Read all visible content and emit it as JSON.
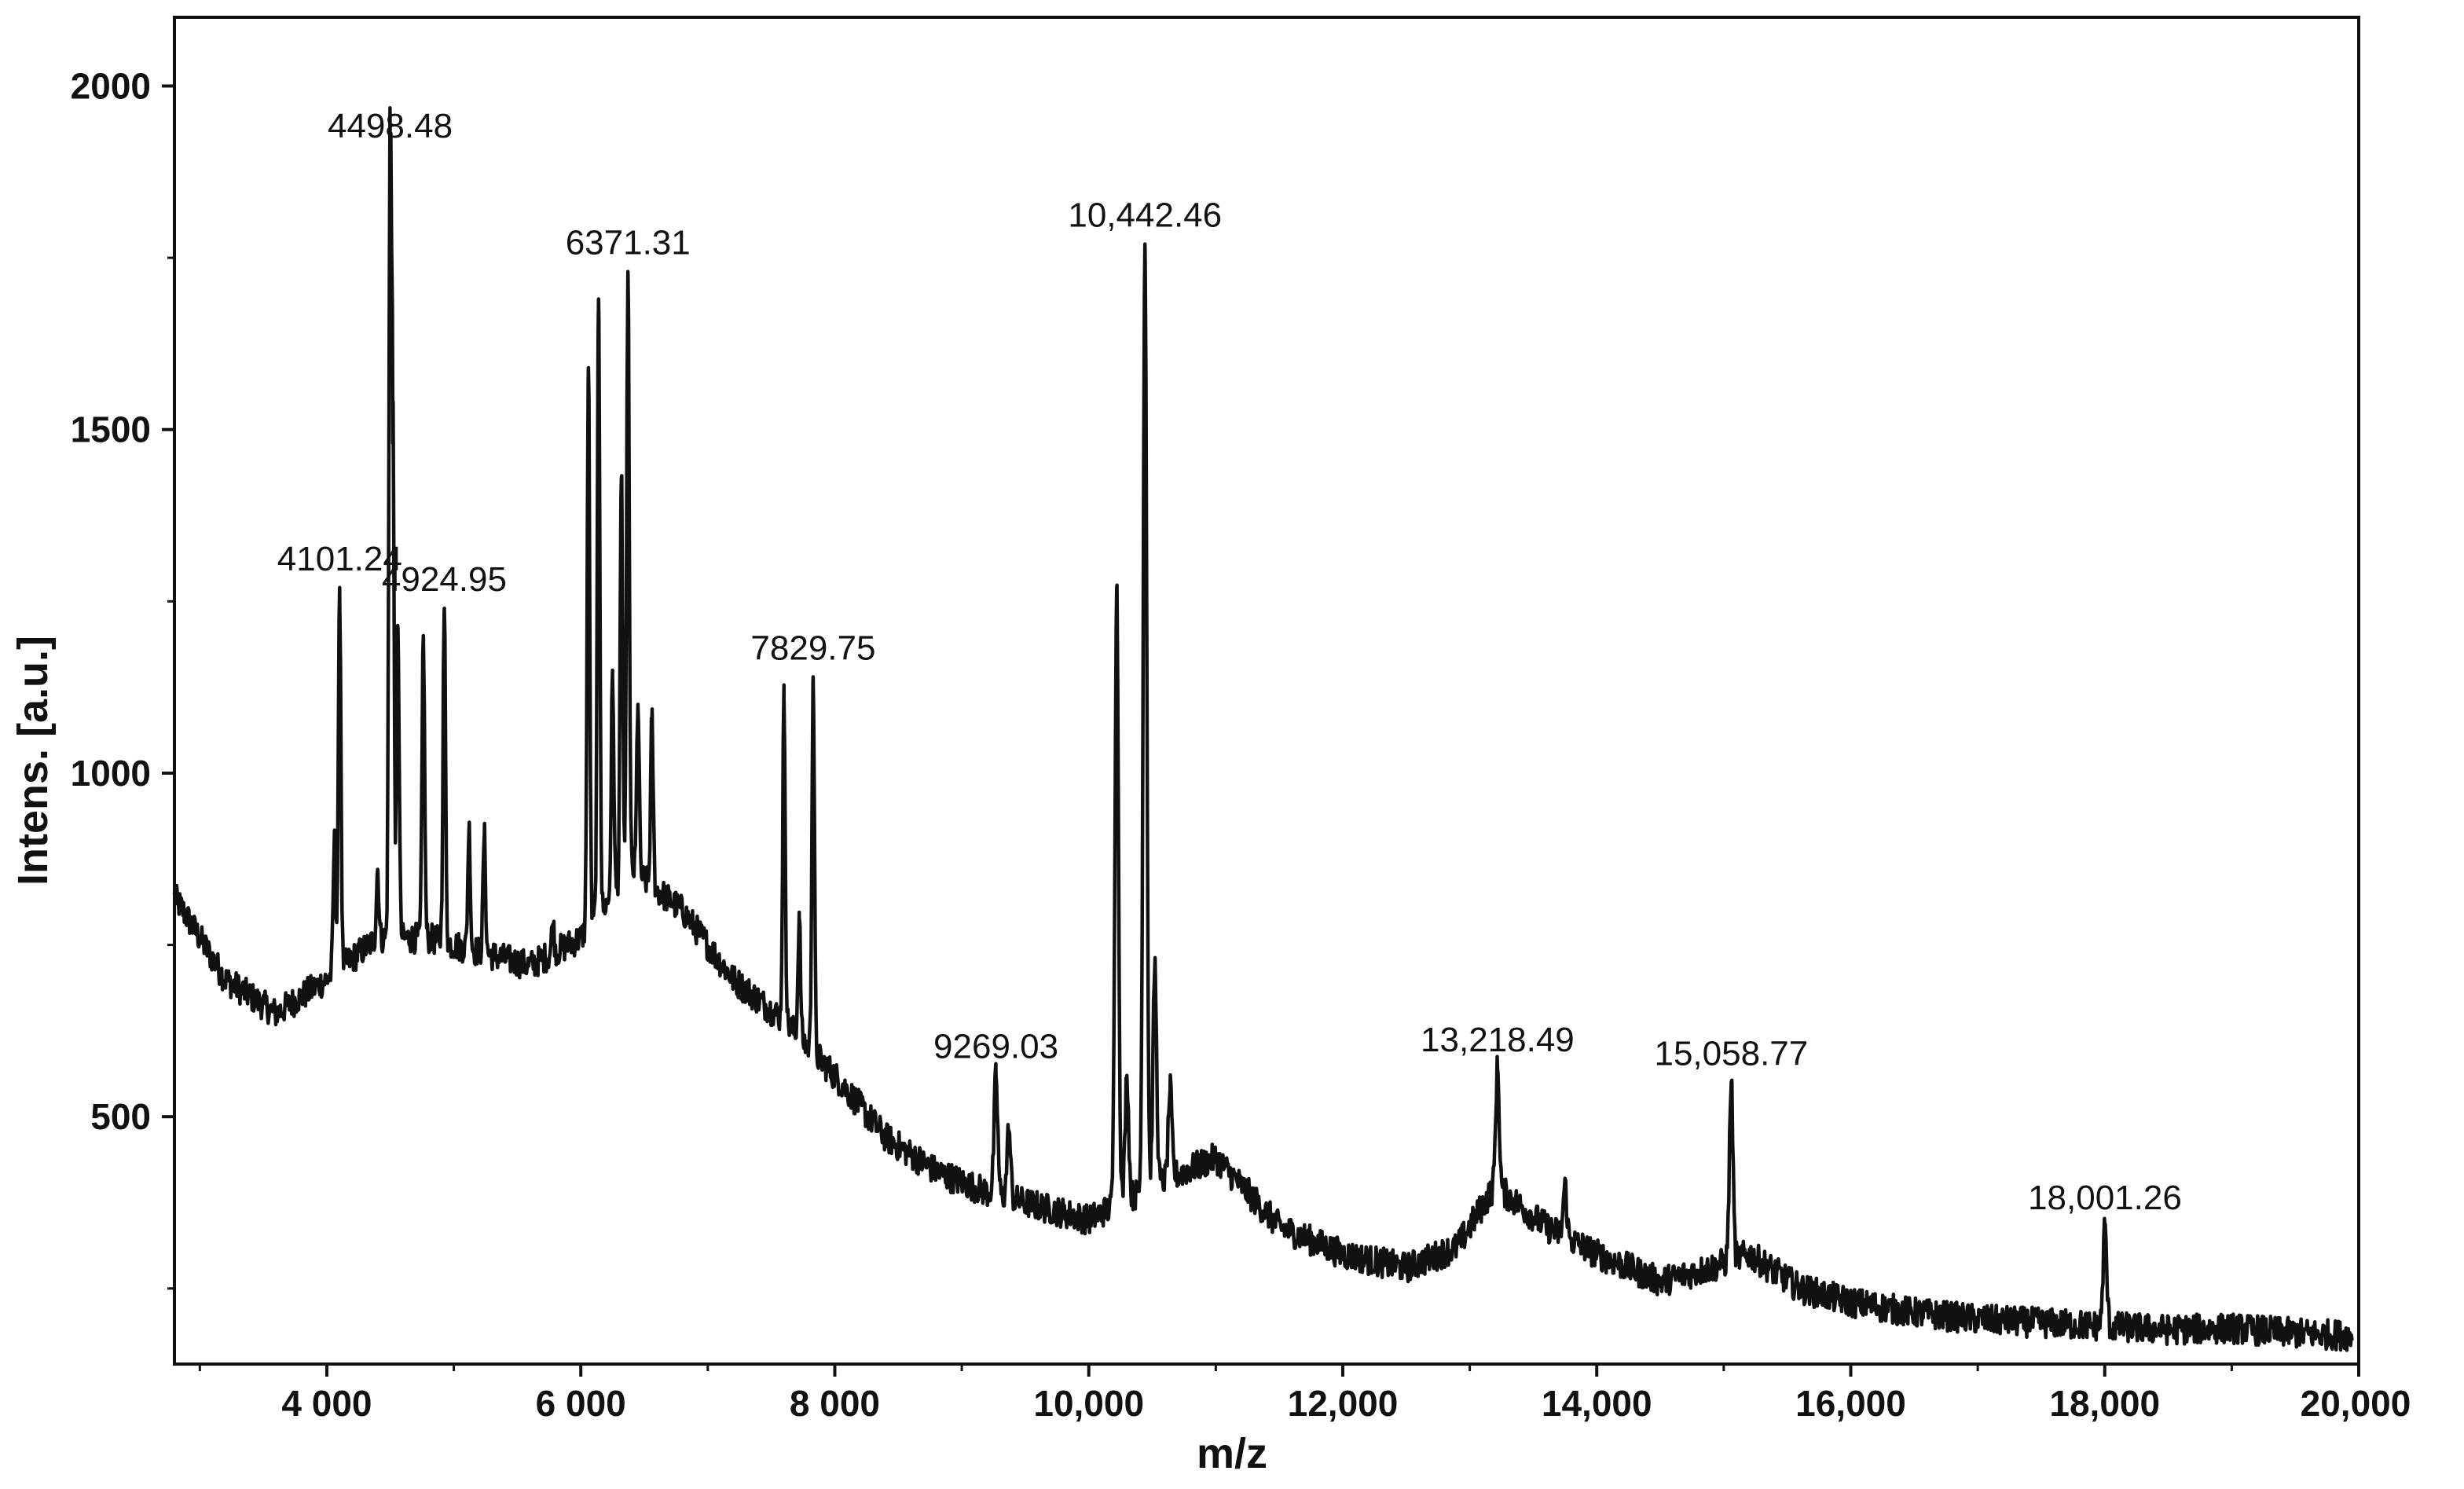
{
  "chart_data": {
    "type": "line",
    "title": "",
    "xlabel": "m/z",
    "ylabel": "Intens. [a.u.]",
    "xlim": [
      2800,
      20000
    ],
    "ylim": [
      140,
      2100
    ],
    "grid": false,
    "x_ticks": [
      {
        "value": 4000,
        "label": "4 000"
      },
      {
        "value": 6000,
        "label": "6 000"
      },
      {
        "value": 8000,
        "label": "8 000"
      },
      {
        "value": 10000,
        "label": "10,000"
      },
      {
        "value": 12000,
        "label": "12,000"
      },
      {
        "value": 14000,
        "label": "14,000"
      },
      {
        "value": 16000,
        "label": "16,000"
      },
      {
        "value": 18000,
        "label": "18,000"
      },
      {
        "value": 20000,
        "label": "20,000"
      }
    ],
    "y_ticks": [
      {
        "value": 500,
        "label": "500"
      },
      {
        "value": 1000,
        "label": "1000"
      },
      {
        "value": 1500,
        "label": "1500"
      },
      {
        "value": 2000,
        "label": "2000"
      }
    ],
    "baseline": [
      [
        2800,
        820
      ],
      [
        3200,
        700
      ],
      [
        3600,
        650
      ],
      [
        4000,
        700
      ],
      [
        4400,
        760
      ],
      [
        4800,
        760
      ],
      [
        5200,
        740
      ],
      [
        5600,
        720
      ],
      [
        6000,
        760
      ],
      [
        6400,
        860
      ],
      [
        6800,
        800
      ],
      [
        7200,
        700
      ],
      [
        7600,
        640
      ],
      [
        8000,
        560
      ],
      [
        8400,
        470
      ],
      [
        8800,
        420
      ],
      [
        9200,
        390
      ],
      [
        9600,
        370
      ],
      [
        10000,
        350
      ],
      [
        10500,
        400
      ],
      [
        11000,
        440
      ],
      [
        11500,
        340
      ],
      [
        12000,
        300
      ],
      [
        12500,
        280
      ],
      [
        12900,
        310
      ],
      [
        13200,
        400
      ],
      [
        13600,
        340
      ],
      [
        14000,
        300
      ],
      [
        14500,
        260
      ],
      [
        14900,
        280
      ],
      [
        15200,
        300
      ],
      [
        15600,
        250
      ],
      [
        16000,
        230
      ],
      [
        16500,
        215
      ],
      [
        17000,
        205
      ],
      [
        17500,
        200
      ],
      [
        18000,
        195
      ],
      [
        18500,
        190
      ],
      [
        19000,
        192
      ],
      [
        19500,
        185
      ],
      [
        19900,
        182
      ]
    ],
    "peaks": [
      {
        "x": 4101.24,
        "y": 1270,
        "label": "4101.24"
      },
      {
        "x": 4498.48,
        "y": 1900,
        "label": "4498.48"
      },
      {
        "x": 4924.95,
        "y": 1240,
        "label": "4924.95"
      },
      {
        "x": 6371.31,
        "y": 1730,
        "label": "6371.31"
      },
      {
        "x": 7829.75,
        "y": 1140,
        "label": "7829.75"
      },
      {
        "x": 9269.03,
        "y": 560,
        "label": "9269.03"
      },
      {
        "x": 10442.46,
        "y": 1770,
        "label": "10,442.46"
      },
      {
        "x": 13218.49,
        "y": 570,
        "label": "13,218.49"
      },
      {
        "x": 15058.77,
        "y": 550,
        "label": "15,058.77"
      },
      {
        "x": 18001.26,
        "y": 340,
        "label": "18,001.26"
      }
    ],
    "minor_peaks": [
      [
        4060,
        900
      ],
      [
        4400,
        860
      ],
      [
        4520,
        1480
      ],
      [
        4560,
        1210
      ],
      [
        4760,
        1200
      ],
      [
        5120,
        920
      ],
      [
        5240,
        910
      ],
      [
        5780,
        780
      ],
      [
        6060,
        1590
      ],
      [
        6140,
        1690
      ],
      [
        6250,
        1140
      ],
      [
        6320,
        1430
      ],
      [
        6450,
        1100
      ],
      [
        6560,
        1080
      ],
      [
        7600,
        1110
      ],
      [
        7720,
        790
      ],
      [
        10220,
        1270
      ],
      [
        10300,
        560
      ],
      [
        10520,
        720
      ],
      [
        10640,
        540
      ],
      [
        9370,
        480
      ],
      [
        13750,
        400
      ]
    ],
    "noise_amplitude": 22
  }
}
